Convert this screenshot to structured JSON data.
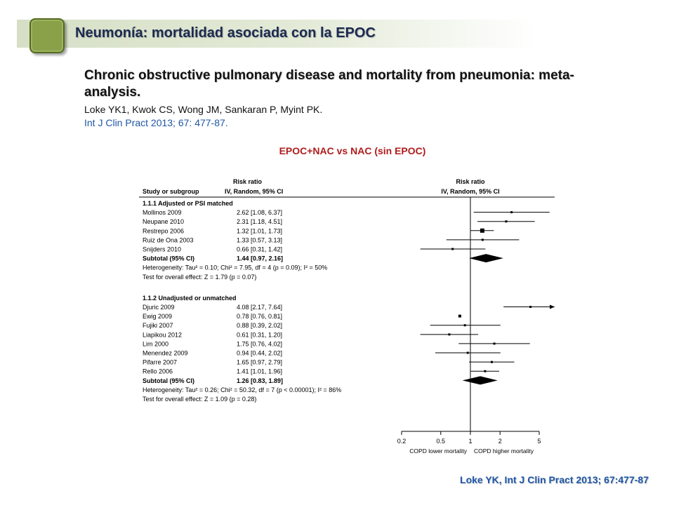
{
  "header": {
    "title": "Neumonía: mortalidad asociada con la EPOC",
    "accent_color": "#8aa14a",
    "band_color": "#d6dfc6"
  },
  "paper": {
    "title": "Chronic obstructive pulmonary disease and mortality from pneumonia: meta-analysis.",
    "authors": "Loke YK1, Kwok CS, Wong JM, Sankaran P, Myint PK.",
    "journal": "Int J Clin Pract 2013; 67: 477-87."
  },
  "figure_caption": "EPOC+NAC vs NAC (sin EPOC)",
  "citation": "Loke YK, Int J Clin Pract 2013; 67:477-87",
  "forest": {
    "col_study": "Study or subgroup",
    "col_rr_line1": "Risk ratio",
    "col_rr_line2": "IV, Random, 95% CI",
    "col_plot_line1": "Risk ratio",
    "col_plot_line2": "IV, Random, 95% CI",
    "axis_left_label": "COPD lower mortality",
    "axis_right_label": "COPD higher mortality",
    "axis_ticks": [
      0.2,
      0.5,
      1,
      2,
      5
    ],
    "axis_tick_labels": [
      "0.2",
      "0.5",
      "1",
      "2",
      "5"
    ],
    "groups": [
      {
        "heading": "1.1.1 Adjusted or PSI matched",
        "studies": [
          {
            "name": "Mollinos 2009",
            "rr_text": "2.62 [1.08, 6.37]",
            "rr": 2.62,
            "lo": 1.08,
            "hi": 6.37
          },
          {
            "name": "Neupane 2010",
            "rr_text": "2.31 [1.18, 4.51]",
            "rr": 2.31,
            "lo": 1.18,
            "hi": 4.51
          },
          {
            "name": "Restrepo 2006",
            "rr_text": "1.32 [1.01, 1.73]",
            "rr": 1.32,
            "lo": 1.01,
            "hi": 1.73
          },
          {
            "name": "Ruiz de Ona 2003",
            "rr_text": "1.33 [0.57, 3.13]",
            "rr": 1.33,
            "lo": 0.57,
            "hi": 3.13
          },
          {
            "name": "Snijders 2010",
            "rr_text": "0.66 [0.31, 1.42]",
            "rr": 0.66,
            "lo": 0.31,
            "hi": 1.42
          }
        ],
        "subtotal": {
          "name": "Subtotal (95% CI)",
          "rr_text": "1.44 [0.97, 2.16]",
          "rr": 1.44,
          "lo": 0.97,
          "hi": 2.16
        },
        "heterogeneity": "Heterogeneity: Tau² = 0.10; Chi² = 7.95, df = 4 (p = 0.09); I² = 50%",
        "overall": "Test for overall effect: Z = 1.79 (p = 0.07)"
      },
      {
        "heading": "1.1.2 Unadjusted or unmatched",
        "studies": [
          {
            "name": "Djuric 2009",
            "rr_text": "4.08 [2.17, 7.64]",
            "rr": 4.08,
            "lo": 2.17,
            "hi": 7.64
          },
          {
            "name": "Ewig 2009",
            "rr_text": "0.78 [0.76, 0.81]",
            "rr": 0.78,
            "lo": 0.76,
            "hi": 0.81
          },
          {
            "name": "Fujiki 2007",
            "rr_text": "0.88 [0.39, 2.02]",
            "rr": 0.88,
            "lo": 0.39,
            "hi": 2.02
          },
          {
            "name": "Liapikou 2012",
            "rr_text": "0.61 [0.31, 1.20]",
            "rr": 0.61,
            "lo": 0.31,
            "hi": 1.2
          },
          {
            "name": "Lim 2000",
            "rr_text": "1.75 [0.76, 4.02]",
            "rr": 1.75,
            "lo": 0.76,
            "hi": 4.02
          },
          {
            "name": "Menendez 2009",
            "rr_text": "0.94 [0.44, 2.02]",
            "rr": 0.94,
            "lo": 0.44,
            "hi": 2.02
          },
          {
            "name": "Pifarre 2007",
            "rr_text": "1.65 [0.97, 2.79]",
            "rr": 1.65,
            "lo": 0.97,
            "hi": 2.79
          },
          {
            "name": "Rello 2006",
            "rr_text": "1.41 [1.01, 1.96]",
            "rr": 1.41,
            "lo": 1.01,
            "hi": 1.96
          }
        ],
        "subtotal": {
          "name": "Subtotal (95% CI)",
          "rr_text": "1.26 [0.83, 1.89]",
          "rr": 1.26,
          "lo": 0.83,
          "hi": 1.89
        },
        "heterogeneity": "Heterogeneity: Tau² = 0.26; Chi² = 50.32, df = 7 (p < 0.00001); I² = 86%",
        "overall": "Test for overall effect: Z = 1.09 (p = 0.28)"
      }
    ]
  }
}
